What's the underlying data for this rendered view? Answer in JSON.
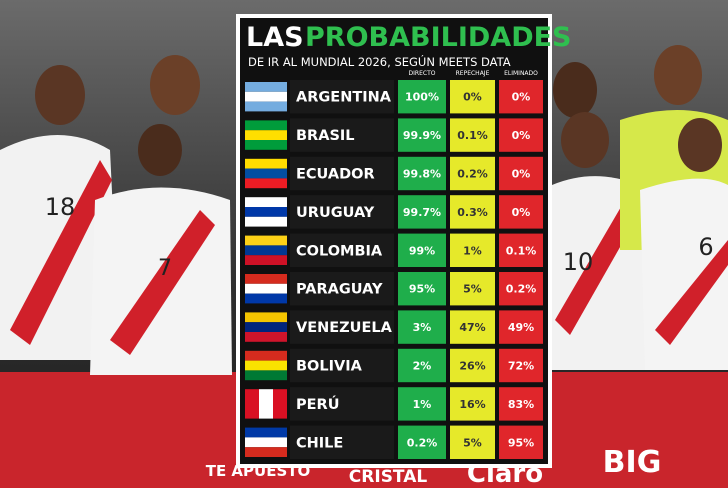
{
  "header": {
    "title_part1": "LAS",
    "title_part2": "PROBABILIDADES",
    "subtitle": "DE IR AL MUNDIAL 2026, SEGÚN MEETS DATA"
  },
  "table": {
    "columns": [
      "DIRECTO",
      "REPECHAJE",
      "ELIMINADO"
    ],
    "rows": [
      [
        "ARGENTINA",
        "100%",
        "0%",
        "0%"
      ],
      [
        "BRASIL",
        "99.9%",
        "0.1%",
        "0%"
      ],
      [
        "ECUADOR",
        "99.8%",
        "0.2%",
        "0%"
      ],
      [
        "URUGUAY",
        "99.7%",
        "0.3%",
        "0%"
      ],
      [
        "COLOMBIA",
        "99%",
        "1%",
        "0.1%"
      ],
      [
        "PARAGUAY",
        "95%",
        "5%",
        "0.2%"
      ],
      [
        "VENEZUELA",
        "3%",
        "47%",
        "49%"
      ],
      [
        "BOLIVIA",
        "2%",
        "26%",
        "72%"
      ],
      [
        "PERÚ",
        "1%",
        "16%",
        "83%"
      ],
      [
        "CHILE",
        "0.2%",
        "5%",
        "95%"
      ]
    ]
  },
  "background": {
    "jersey_numbers": [
      "18",
      "7",
      "10",
      "6"
    ],
    "sponsors": [
      "TE APUESTO",
      "CRISTAL",
      "Claro",
      "BIG"
    ]
  }
}
